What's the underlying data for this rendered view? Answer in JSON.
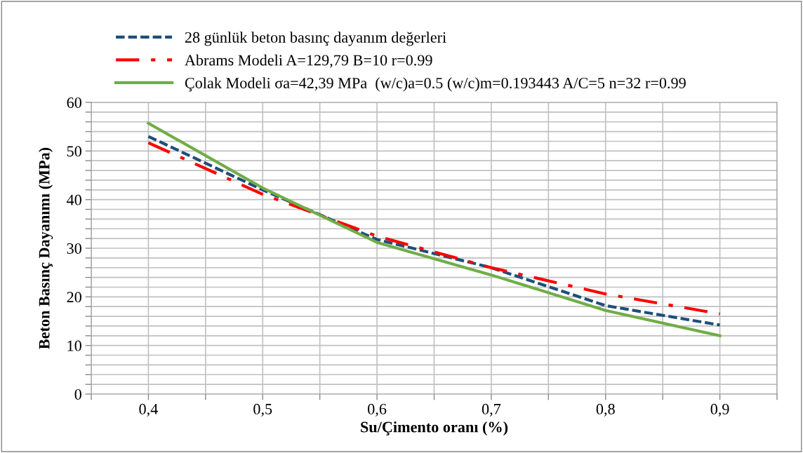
{
  "chart_data": {
    "type": "line",
    "xlabel": "Su/Çimento oranı (%)",
    "ylabel": "Beton Basınç Dayanımı (MPa)",
    "x": [
      0.4,
      0.5,
      0.6,
      0.7,
      0.8,
      0.9
    ],
    "series": [
      {
        "name": "28 günlük beton basınç dayanım değerleri",
        "color": "#1f4e79",
        "line_style": "dashed",
        "values": [
          53,
          42,
          31.8,
          26,
          18.2,
          14.2
        ]
      },
      {
        "name": "Abrams Modeli A=129,79 B=10 r=0.99",
        "color": "#ff0000",
        "line_style": "dashdot",
        "values": [
          51.7,
          41.1,
          32.5,
          26,
          20.6,
          16.5
        ]
      },
      {
        "name": "Çolak Modeli σa=42,39 MPa  (w/c)a=0.5 (w/c)m=0.193443 A/C=5 n=32 r=0.99",
        "color": "#70ad47",
        "line_style": "solid",
        "values": [
          55.7,
          42.4,
          31.2,
          24.5,
          17.2,
          12
        ]
      }
    ],
    "xlim": [
      0.35,
      0.95
    ],
    "xticks": [
      {
        "value": 0.35,
        "label": null
      },
      {
        "value": 0.4,
        "label": "0,4"
      },
      {
        "value": 0.45,
        "label": null
      },
      {
        "value": 0.5,
        "label": "0,5"
      },
      {
        "value": 0.55,
        "label": null
      },
      {
        "value": 0.6,
        "label": "0,6"
      },
      {
        "value": 0.65,
        "label": null
      },
      {
        "value": 0.7,
        "label": "0,7"
      },
      {
        "value": 0.75,
        "label": null
      },
      {
        "value": 0.8,
        "label": "0,8"
      },
      {
        "value": 0.85,
        "label": null
      },
      {
        "value": 0.9,
        "label": "0,9"
      },
      {
        "value": 0.95,
        "label": null
      }
    ],
    "ylim": [
      0,
      60
    ],
    "yticks": [
      0,
      {
        "value": 2,
        "label": null
      },
      {
        "value": 4,
        "label": null
      },
      {
        "value": 6,
        "label": null
      },
      {
        "value": 8,
        "label": null
      },
      10,
      {
        "value": 12,
        "label": null
      },
      {
        "value": 14,
        "label": null
      },
      {
        "value": 16,
        "label": null
      },
      {
        "value": 18,
        "label": null
      },
      20,
      {
        "value": 22,
        "label": null
      },
      {
        "value": 24,
        "label": null
      },
      {
        "value": 26,
        "label": null
      },
      {
        "value": 28,
        "label": null
      },
      30,
      {
        "value": 32,
        "label": null
      },
      {
        "value": 34,
        "label": null
      },
      {
        "value": 36,
        "label": null
      },
      {
        "value": 38,
        "label": null
      },
      40,
      {
        "value": 42,
        "label": null
      },
      {
        "value": 44,
        "label": null
      },
      {
        "value": 46,
        "label": null
      },
      {
        "value": 48,
        "label": null
      },
      50,
      {
        "value": 52,
        "label": null
      },
      {
        "value": 54,
        "label": null
      },
      {
        "value": 56,
        "label": null
      },
      {
        "value": 58,
        "label": null
      },
      60
    ],
    "grid": true,
    "legend": "top left"
  }
}
